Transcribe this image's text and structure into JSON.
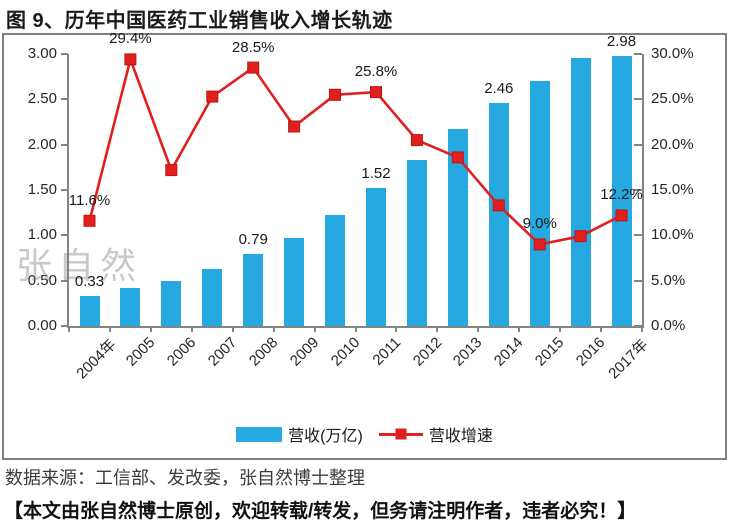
{
  "title": "图 9、历年中国医药工业销售收入增长轨迹",
  "watermark": "张自然",
  "source_line": "数据来源：工信部、发改委，张自然博士整理",
  "footer": "【本文由张自然博士原创，欢迎转载/转发，但务请注明作者，违者必究！】",
  "legend": {
    "bar_label": "营收(万亿)",
    "line_label": "营收增速"
  },
  "colors": {
    "bar": "#25a9e0",
    "line": "#e01f1f",
    "line_marker_edge": "#c01414",
    "axis": "#848484",
    "watermark": "#b9b9b9"
  },
  "chart_data": {
    "type": "bar+line",
    "title": "历年中国医药工业销售收入增长轨迹",
    "categories": [
      "2004年",
      "2005",
      "2006",
      "2007",
      "2008",
      "2009",
      "2010",
      "2011",
      "2012",
      "2013",
      "2014",
      "2015",
      "2016",
      "2017年"
    ],
    "series": [
      {
        "name": "营收(万亿)",
        "type": "bar",
        "axis": "left",
        "values": [
          0.33,
          0.42,
          0.5,
          0.63,
          0.79,
          0.97,
          1.23,
          1.52,
          1.83,
          2.17,
          2.46,
          2.7,
          2.96,
          2.98
        ],
        "point_labels": [
          "0.33",
          null,
          null,
          null,
          "0.79",
          null,
          null,
          "1.52",
          null,
          null,
          "2.46",
          null,
          null,
          "2.98"
        ]
      },
      {
        "name": "营收增速",
        "type": "line",
        "axis": "right",
        "values": [
          11.6,
          29.4,
          17.2,
          25.3,
          28.5,
          22.0,
          25.5,
          25.8,
          20.5,
          18.6,
          13.3,
          9.0,
          9.9,
          12.2
        ],
        "point_labels": [
          "11.6%",
          "29.4%",
          null,
          null,
          "28.5%",
          null,
          null,
          "25.8%",
          null,
          null,
          null,
          "9.0%",
          null,
          "12.2%"
        ]
      }
    ],
    "left_axis": {
      "min": 0,
      "max": 3,
      "ticks": [
        "0.00",
        "0.50",
        "1.00",
        "1.50",
        "2.00",
        "2.50",
        "3.00"
      ]
    },
    "right_axis": {
      "min": 0,
      "max": 30,
      "ticks": [
        "0.0%",
        "5.0%",
        "10.0%",
        "15.0%",
        "20.0%",
        "25.0%",
        "30.0%"
      ]
    },
    "grid": false,
    "legend_position": "bottom"
  }
}
